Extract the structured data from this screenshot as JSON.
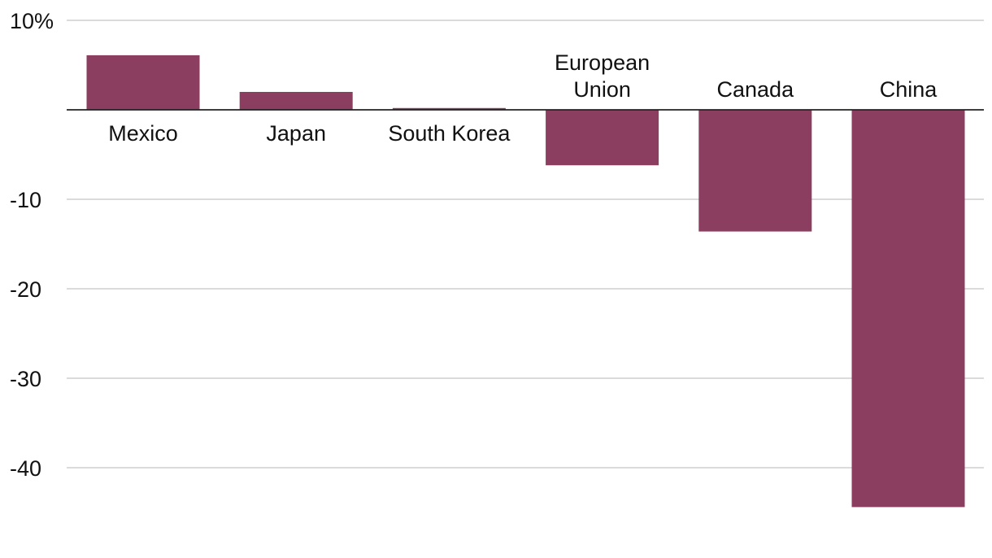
{
  "chart_data": {
    "type": "bar",
    "title": "",
    "xlabel": "",
    "ylabel": "",
    "categories": [
      [
        "Mexico"
      ],
      [
        "Japan"
      ],
      [
        "South Korea"
      ],
      [
        "European",
        "Union"
      ],
      [
        "Canada"
      ],
      [
        "China"
      ]
    ],
    "values": [
      6.1,
      2.0,
      0.2,
      -6.2,
      -13.6,
      -44.4
    ],
    "ylim": [
      -46,
      10
    ],
    "yticks": [
      10,
      0,
      -10,
      -20,
      -30,
      -40
    ],
    "ytick_labels": [
      "10%",
      "",
      "-10",
      "-20",
      "-30",
      "-40"
    ],
    "grid": true,
    "bar_color": "#8b3e5f"
  }
}
